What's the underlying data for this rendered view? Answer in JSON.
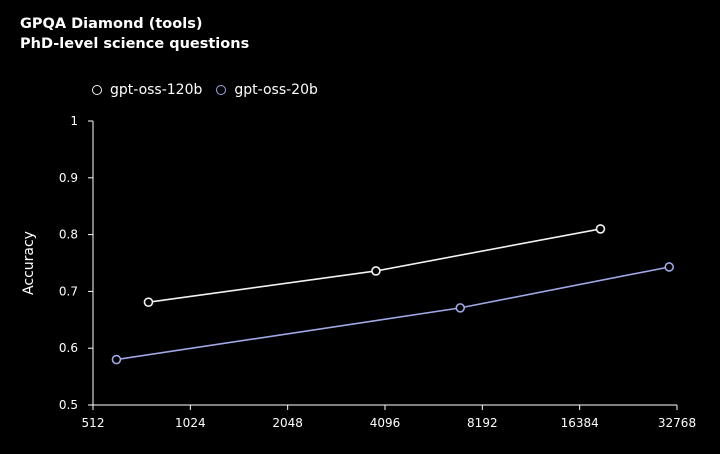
{
  "chart_data": {
    "type": "line",
    "title": "GPQA Diamond (tools)",
    "subtitle": "PhD-level science questions",
    "xlabel": "",
    "ylabel": "Accuracy",
    "x_scale": "log2",
    "xlim": [
      512,
      32768
    ],
    "ylim": [
      0.5,
      1.0
    ],
    "x_ticks": [
      512,
      1024,
      2048,
      4096,
      8192,
      16384,
      32768
    ],
    "y_ticks": [
      0.5,
      0.6,
      0.7,
      0.8,
      0.9,
      1
    ],
    "legend_position": "top-left",
    "grid": false,
    "series": [
      {
        "name": "gpt-oss-120b",
        "color": "#f2f2f2",
        "points": [
          {
            "x": 760,
            "y": 0.681
          },
          {
            "x": 3840,
            "y": 0.736
          },
          {
            "x": 19000,
            "y": 0.81
          }
        ]
      },
      {
        "name": "gpt-oss-20b",
        "color": "#a0a8e6",
        "points": [
          {
            "x": 605,
            "y": 0.58
          },
          {
            "x": 7000,
            "y": 0.671
          },
          {
            "x": 31000,
            "y": 0.743
          }
        ]
      }
    ]
  }
}
